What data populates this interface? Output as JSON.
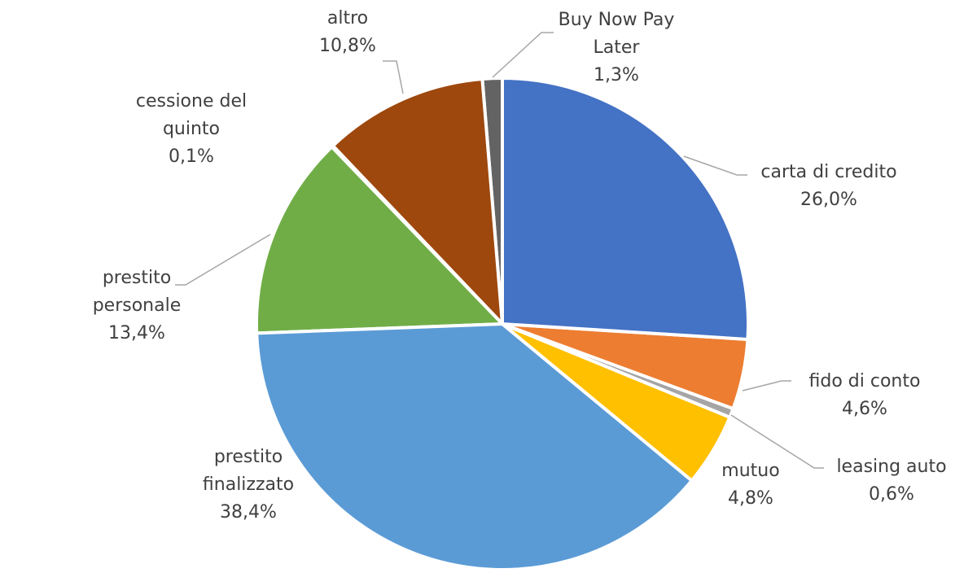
{
  "chart_data": {
    "type": "pie",
    "categories": [
      "carta di credito",
      "fido di conto",
      "leasing auto",
      "mutuo",
      "prestito finalizzato",
      "prestito personale",
      "cessione del quinto",
      "altro",
      "Buy Now Pay Later"
    ],
    "values": [
      26.0,
      4.6,
      0.6,
      4.8,
      38.4,
      13.4,
      0.1,
      10.8,
      1.3
    ],
    "value_labels": [
      "26,0%",
      "4,6%",
      "0,6%",
      "4,8%",
      "38,4%",
      "13,4%",
      "0,1%",
      "10,8%",
      "1,3%"
    ],
    "colors": [
      "#4472c4",
      "#ed7d31",
      "#a5a5a5",
      "#ffc000",
      "#5b9bd5",
      "#70ad47",
      "#264478",
      "#9e480e",
      "#636363"
    ]
  }
}
